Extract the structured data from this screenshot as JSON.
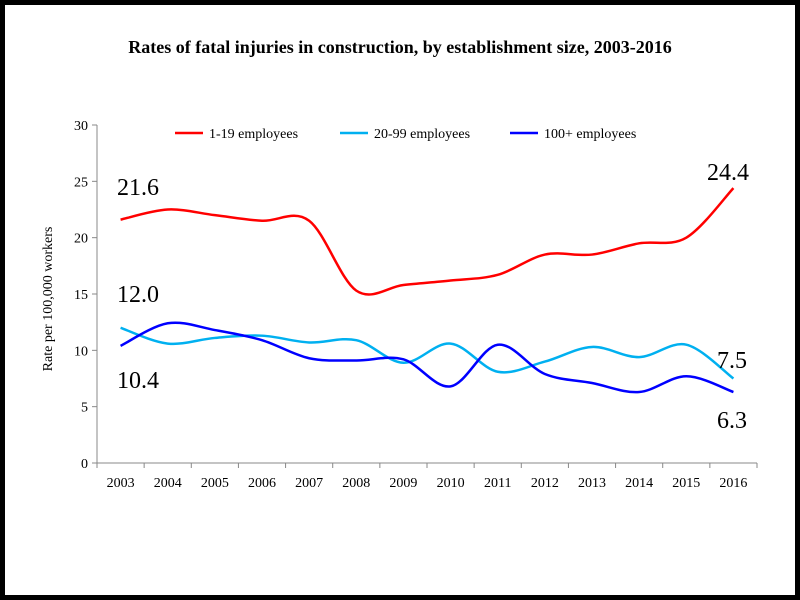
{
  "chart_data": {
    "type": "line",
    "title": "Rates of fatal injuries in construction, by establishment size, 2003-2016",
    "ylabel": "Rate per 100,000 workers",
    "xlabel": "",
    "ylim": [
      0,
      30
    ],
    "yticks": [
      "0",
      "5",
      "10",
      "15",
      "20",
      "25",
      "30"
    ],
    "categories": [
      "2003",
      "2004",
      "2005",
      "2006",
      "2007",
      "2008",
      "2009",
      "2010",
      "2011",
      "2012",
      "2013",
      "2014",
      "2015",
      "2016"
    ],
    "legend_position": "top",
    "grid": false,
    "series": [
      {
        "name": "1-19 employees",
        "color": "#ff0000",
        "values": [
          21.6,
          22.5,
          22.0,
          21.5,
          21.5,
          15.3,
          15.8,
          16.2,
          16.7,
          18.5,
          18.5,
          19.5,
          20.0,
          24.4
        ]
      },
      {
        "name": "20-99 employees",
        "color": "#00b0f0",
        "values": [
          12.0,
          10.6,
          11.1,
          11.3,
          10.7,
          10.9,
          8.9,
          10.6,
          8.1,
          9.0,
          10.3,
          9.4,
          10.5,
          7.5
        ]
      },
      {
        "name": "100+ employees",
        "color": "#0000ff",
        "values": [
          10.4,
          12.4,
          11.8,
          10.9,
          9.3,
          9.1,
          9.2,
          6.8,
          10.5,
          7.9,
          7.1,
          6.3,
          7.7,
          6.3
        ]
      }
    ],
    "annotations": [
      "21.6",
      "12.0",
      "10.4",
      "24.4",
      "7.5",
      "6.3"
    ]
  }
}
